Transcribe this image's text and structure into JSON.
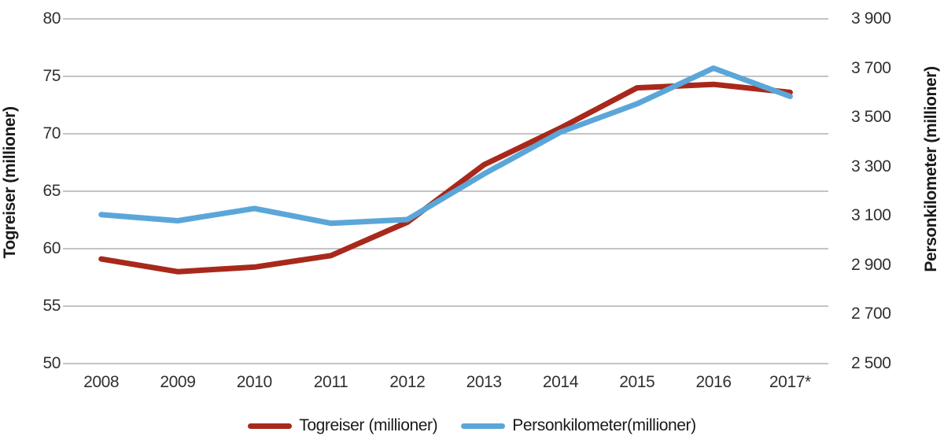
{
  "chart_data": {
    "type": "line",
    "categories": [
      "2008",
      "2009",
      "2010",
      "2011",
      "2012",
      "2013",
      "2014",
      "2015",
      "2016",
      "2017*"
    ],
    "series": [
      {
        "name": "Togreiser (millioner)",
        "axis": "left",
        "color": "#A8291B",
        "values": [
          59.1,
          58.0,
          58.4,
          59.4,
          62.3,
          67.3,
          70.5,
          74.0,
          74.3,
          73.6
        ]
      },
      {
        "name": "Personkilometer(millioner)",
        "axis": "right",
        "color": "#5BA6D9",
        "values": [
          3105,
          3080,
          3130,
          3070,
          3085,
          3270,
          3440,
          3555,
          3700,
          3585
        ]
      }
    ],
    "left_axis": {
      "title": "Togreiser (millioner)",
      "min": 50,
      "max": 80,
      "step": 5,
      "tick_labels": [
        "80",
        "75",
        "70",
        "65",
        "60",
        "55",
        "50"
      ]
    },
    "right_axis": {
      "title": "Personkilometer (millioner)",
      "min": 2500,
      "max": 3900,
      "step": 200,
      "tick_labels": [
        "3 900",
        "3 700",
        "3 500",
        "3 300",
        "3 100",
        "2 900",
        "2 700",
        "2 500"
      ]
    },
    "x_axis": {
      "tick_labels": [
        "2008",
        "2009",
        "2010",
        "2011",
        "2012",
        "2013",
        "2014",
        "2015",
        "2016",
        "2017*"
      ]
    },
    "grid": true,
    "gridline_color": "#A0A0A0",
    "legend_position": "bottom",
    "line_width": 7
  }
}
